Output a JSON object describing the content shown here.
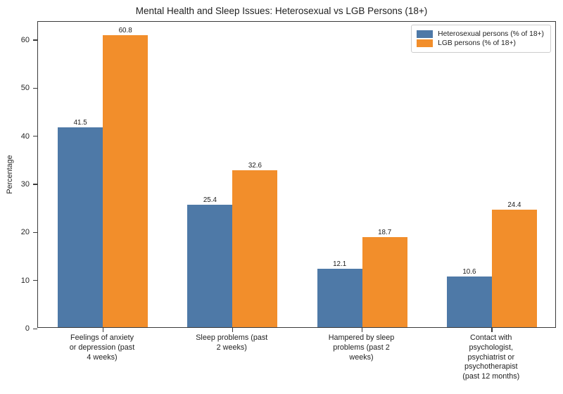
{
  "title": "Mental Health and Sleep Issues: Heterosexual vs LGB Persons (18+)",
  "chart_data": {
    "type": "bar",
    "title": "Mental Health and Sleep Issues: Heterosexual vs LGB Persons (18+)",
    "categories": [
      "Feelings of anxiety\nor depression (past\n4 weeks)",
      "Sleep problems (past\n2 weeks)",
      "Hampered by sleep\nproblems (past 2\nweeks)",
      "Contact with\npsychologist,\npsychiatrist or\npsychotherapist\n(past 12 months)"
    ],
    "series": [
      {
        "name": "Heterosexual persons (% of 18+)",
        "color": "#4E79A7",
        "values": [
          41.5,
          25.4,
          12.1,
          10.6
        ]
      },
      {
        "name": "LGB persons (% of 18+)",
        "color": "#F28E2B",
        "values": [
          60.8,
          32.6,
          18.7,
          24.4
        ]
      }
    ],
    "xlabel": "",
    "ylabel": "Percentage",
    "yticks": [
      0,
      10,
      20,
      30,
      40,
      50,
      60
    ],
    "ylim": [
      0,
      63.8
    ],
    "grid": false,
    "legend_position": "upper right",
    "bar_value_labels": true
  }
}
